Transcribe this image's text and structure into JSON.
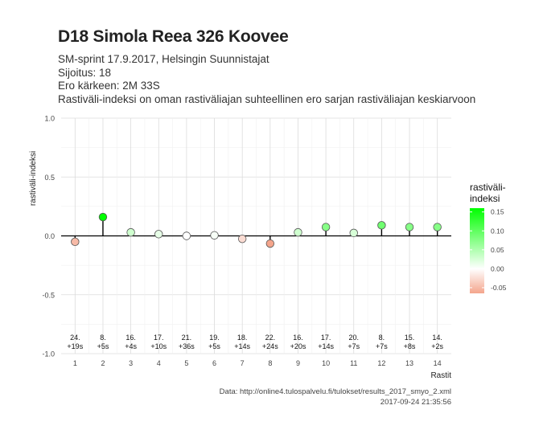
{
  "title": "D18 Simola Reea 326 Koovee",
  "subtitle_lines": [
    "SM-sprint 17.9.2017, Helsingin Suunnistajat",
    "Sijoitus: 18",
    "Ero kärkeen: 2M 33S",
    "Rastiväli-indeksi on oman rastiväliajan suhteellinen ero sarjan rastiväliajan keskiarvoon"
  ],
  "caption_lines": [
    "Data: http://online4.tulospalvelu.fi/tulokset/results_2017_smyo_2.xml",
    "2017-09-24 21:35:56"
  ],
  "chart_data": {
    "type": "scatter",
    "style": "lollipop",
    "xlabel": "Rastit",
    "ylabel": "rastiväli-indeksi",
    "x": [
      1,
      2,
      3,
      4,
      5,
      6,
      7,
      8,
      9,
      10,
      11,
      12,
      13,
      14
    ],
    "y": [
      -0.05,
      0.16,
      0.03,
      0.015,
      0.0,
      0.005,
      -0.025,
      -0.065,
      0.03,
      0.075,
      0.025,
      0.09,
      0.075,
      0.075
    ],
    "ylim": [
      -1.0,
      1.0
    ],
    "yticks": [
      -1.0,
      -0.5,
      0.0,
      0.5,
      1.0
    ],
    "ytick_labels": [
      "-1.0",
      "-0.5",
      "0.0",
      "0.5",
      "1.0"
    ],
    "xlim": [
      0.5,
      14.5
    ],
    "xtick_labels": [
      "1",
      "2",
      "3",
      "4",
      "5",
      "6",
      "7",
      "8",
      "9",
      "10",
      "11",
      "12",
      "13",
      "14"
    ],
    "annotations": [
      {
        "rank": "24.",
        "diff": "+19s"
      },
      {
        "rank": "8.",
        "diff": "+5s"
      },
      {
        "rank": "16.",
        "diff": "+4s"
      },
      {
        "rank": "17.",
        "diff": "+10s"
      },
      {
        "rank": "21.",
        "diff": "+36s"
      },
      {
        "rank": "19.",
        "diff": "+5s"
      },
      {
        "rank": "18.",
        "diff": "+14s"
      },
      {
        "rank": "22.",
        "diff": "+24s"
      },
      {
        "rank": "16.",
        "diff": "+20s"
      },
      {
        "rank": "17.",
        "diff": "+14s"
      },
      {
        "rank": "20.",
        "diff": "+7s"
      },
      {
        "rank": "8.",
        "diff": "+7s"
      },
      {
        "rank": "15.",
        "diff": "+8s"
      },
      {
        "rank": "14.",
        "diff": "+2s"
      }
    ],
    "annotation_y": -0.91,
    "grid": true,
    "legend": {
      "title_lines": [
        "rastiväli-",
        "indeksi"
      ],
      "placement": "right",
      "range": [
        -0.065,
        0.16
      ],
      "ticks": [
        0.15,
        0.1,
        0.05,
        0.0,
        -0.05
      ],
      "tick_labels": [
        "0.15",
        "0.10",
        "0.05",
        "0.00",
        "-0.05"
      ],
      "colors": {
        "low": "#f4a58c",
        "mid": "#ffffff",
        "high": "#00ff00"
      }
    }
  }
}
